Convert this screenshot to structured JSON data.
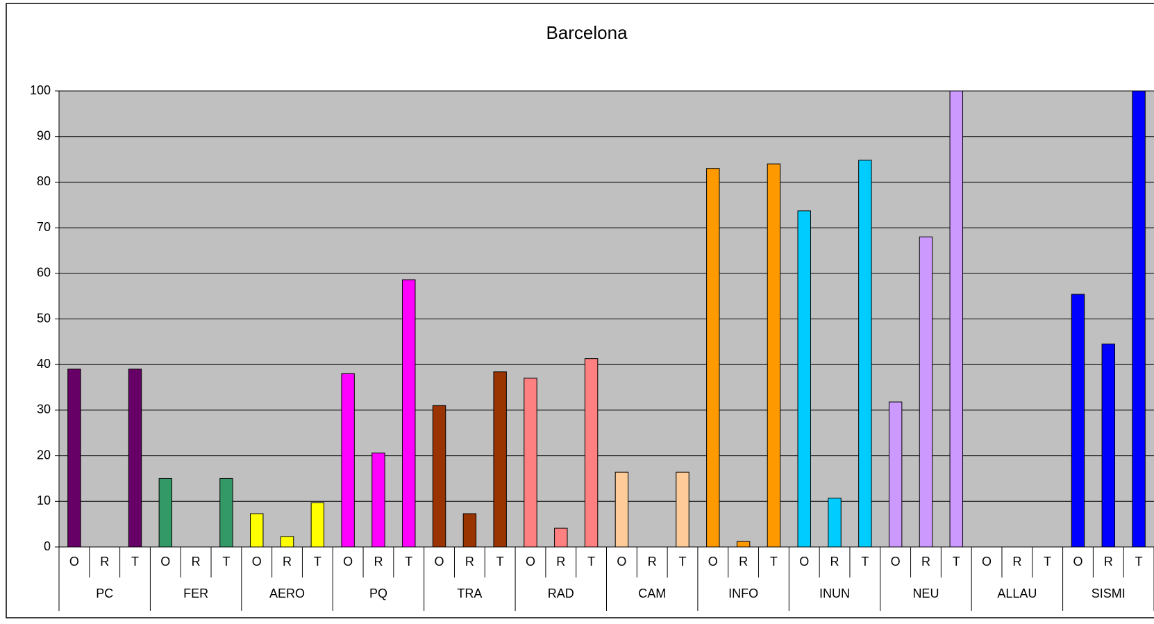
{
  "chart_data": {
    "type": "bar",
    "title": "Barcelona",
    "subcategories": [
      "O",
      "R",
      "T"
    ],
    "groups": [
      {
        "name": "PC",
        "color": "#660066",
        "values": [
          39,
          0,
          39
        ]
      },
      {
        "name": "FER",
        "color": "#339966",
        "values": [
          15,
          0,
          15
        ]
      },
      {
        "name": "AERO",
        "color": "#ffff00",
        "values": [
          7.3,
          2.3,
          9.7
        ]
      },
      {
        "name": "PQ",
        "color": "#ff00ff",
        "values": [
          38,
          20.6,
          58.6
        ]
      },
      {
        "name": "TRA",
        "color": "#993300",
        "values": [
          31,
          7.3,
          38.4
        ]
      },
      {
        "name": "RAD",
        "color": "#ff8080",
        "values": [
          37,
          4.1,
          41.3
        ]
      },
      {
        "name": "CAM",
        "color": "#ffcc99",
        "values": [
          16.4,
          0,
          16.4
        ]
      },
      {
        "name": "INFO",
        "color": "#ff9900",
        "values": [
          83,
          1.2,
          84
        ]
      },
      {
        "name": "INUN",
        "color": "#00ccff",
        "values": [
          73.7,
          10.7,
          84.8
        ]
      },
      {
        "name": "NEU",
        "color": "#cc99ff",
        "values": [
          31.8,
          68,
          100
        ]
      },
      {
        "name": "ALLAU",
        "values": [
          0,
          0,
          0
        ]
      },
      {
        "name": "SISMI",
        "color": "#0000ff",
        "values": [
          55.4,
          44.5,
          100
        ]
      }
    ],
    "ylim": [
      0,
      100
    ],
    "yticks": [
      0,
      10,
      20,
      30,
      40,
      50,
      60,
      70,
      80,
      90,
      100
    ],
    "grid": true,
    "plot_background": "#c0c0c0"
  }
}
